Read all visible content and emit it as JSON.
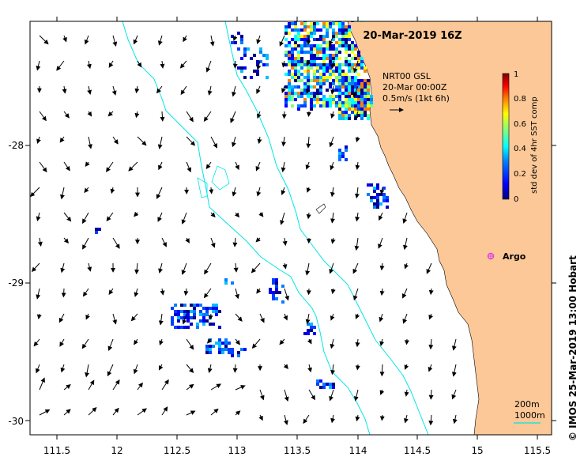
{
  "title": "20-Mar-2019 16Z",
  "current_product": {
    "line1": "NRT00 GSL",
    "line2": "20-Mar 00:00Z",
    "line3": "0.5m/s (1kt 6h)"
  },
  "colorbar": {
    "label": "std dev of 4hr SST comp",
    "ticks": [
      "1",
      "0.8",
      "0.6",
      "0.4",
      "0.2",
      "0"
    ],
    "colors": [
      "#00007f",
      "#0000ff",
      "#007fff",
      "#00ffff",
      "#7fff7f",
      "#ffff00",
      "#ff7f00",
      "#ff0000",
      "#7f0000"
    ]
  },
  "marker": {
    "label": "Argo",
    "color": "#e040e0"
  },
  "contours": {
    "label1": "200m",
    "label2": "1000m",
    "color": "#00e5e5"
  },
  "axes": {
    "x_ticks": [
      "111.5",
      "12",
      "112.5",
      "113",
      "113.5",
      "114",
      "114.5",
      "15",
      "115.5"
    ],
    "y_ticks": [
      "-28",
      "-29",
      "-30"
    ]
  },
  "credit": "©  IMOS 25-Mar-2019 13:00 Hobart",
  "colors": {
    "land": "#fcc897",
    "contour": "#00e5e5",
    "argo": "#e040e0"
  }
}
